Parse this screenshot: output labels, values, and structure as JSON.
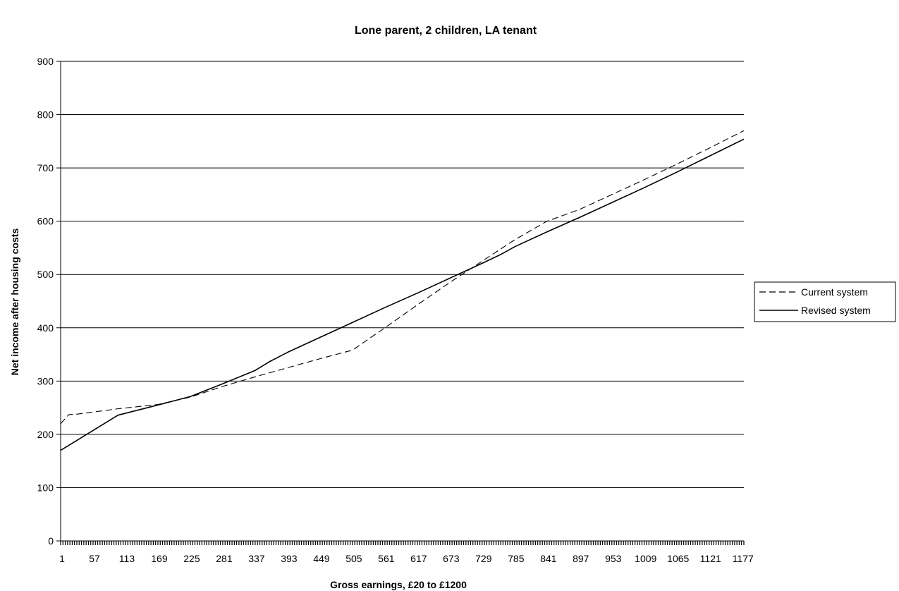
{
  "chart_data": {
    "type": "line",
    "title": "Lone parent, 2 children, LA tenant",
    "xlabel": "Gross earnings, £20 to £1200",
    "ylabel": "Net income after housing costs",
    "ylim": [
      0,
      900
    ],
    "yticks": [
      0,
      100,
      200,
      300,
      400,
      500,
      600,
      700,
      800,
      900
    ],
    "xlim": [
      1,
      1181
    ],
    "xticks": [
      1,
      57,
      113,
      169,
      225,
      281,
      337,
      393,
      449,
      505,
      561,
      617,
      673,
      729,
      785,
      841,
      897,
      953,
      1009,
      1065,
      1121,
      1177
    ],
    "grid": "horizontal",
    "legend_position": "right",
    "series": [
      {
        "name": "Current system",
        "style": "dashed",
        "color": "#000000",
        "x": [
          1,
          15,
          30,
          100,
          169,
          225,
          281,
          337,
          393,
          449,
          505,
          561,
          617,
          673,
          729,
          785,
          841,
          897,
          953,
          1009,
          1065,
          1121,
          1181
        ],
        "y": [
          220,
          237,
          238,
          248,
          256,
          270,
          290,
          308,
          325,
          342,
          358,
          400,
          443,
          485,
          525,
          565,
          600,
          622,
          650,
          678,
          707,
          737,
          770
        ]
      },
      {
        "name": "Revised system",
        "style": "solid",
        "color": "#000000",
        "x": [
          1,
          100,
          169,
          225,
          281,
          337,
          361,
          393,
          449,
          505,
          561,
          617,
          673,
          729,
          760,
          785,
          841,
          897,
          953,
          1009,
          1065,
          1121,
          1181
        ],
        "y": [
          170,
          236,
          255,
          271,
          295,
          320,
          336,
          354,
          382,
          410,
          438,
          465,
          493,
          521,
          537,
          552,
          580,
          607,
          635,
          663,
          692,
          722,
          754
        ]
      }
    ]
  }
}
